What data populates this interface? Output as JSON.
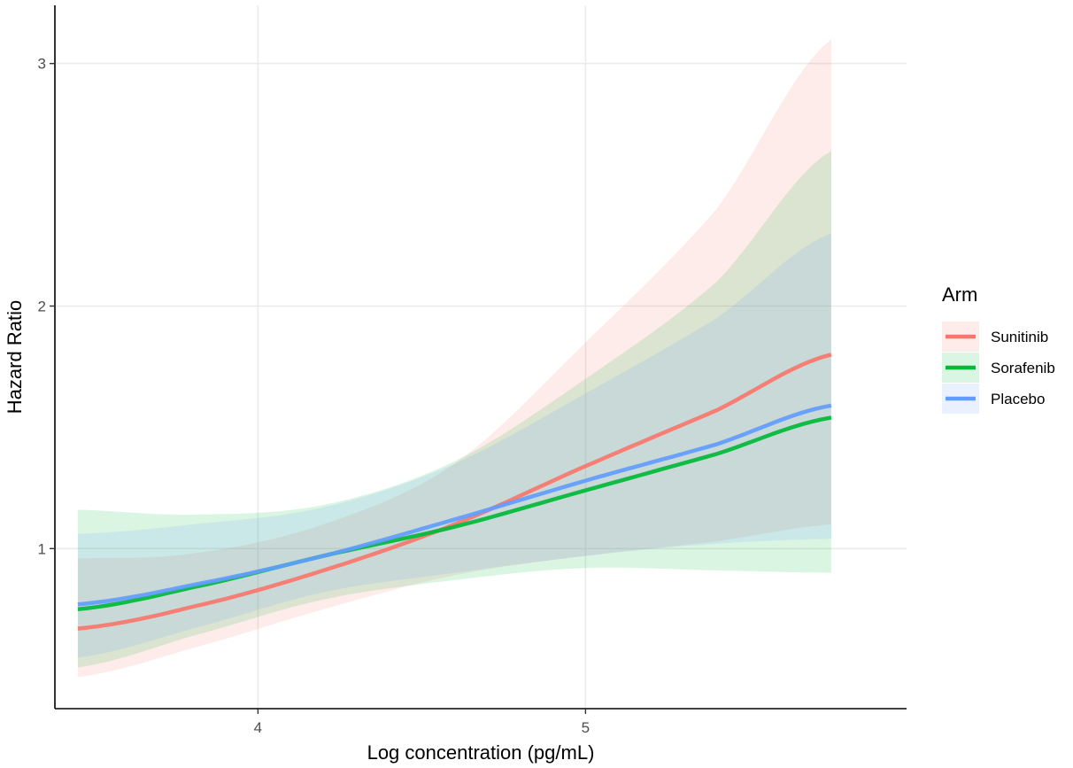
{
  "chart_data": {
    "type": "line",
    "xlabel": "Log concentration (pg/mL)",
    "ylabel": "Hazard Ratio",
    "xlim": [
      3.38,
      5.98
    ],
    "ylim": [
      0.34,
      3.24
    ],
    "x_ticks": [
      4,
      5
    ],
    "y_ticks": [
      1,
      2,
      3
    ],
    "x_tick_labels": [
      "4",
      "5"
    ],
    "y_tick_labels": [
      "1",
      "2",
      "3"
    ],
    "grid": true,
    "legend_position": "right",
    "legend": {
      "title": "Arm"
    },
    "x": [
      3.45,
      3.8,
      4.2,
      4.6,
      5.0,
      5.4,
      5.75
    ],
    "series": [
      {
        "name": "Sunitinib",
        "color": "#F8766D",
        "values": [
          0.67,
          0.76,
          0.91,
          1.1,
          1.34,
          1.57,
          1.8
        ],
        "lower": [
          0.47,
          0.59,
          0.75,
          0.89,
          0.97,
          1.03,
          1.1
        ],
        "upper": [
          0.96,
          0.98,
          1.1,
          1.35,
          1.85,
          2.4,
          3.1
        ]
      },
      {
        "name": "Sorafenib",
        "color": "#00BA38",
        "values": [
          0.75,
          0.84,
          0.97,
          1.09,
          1.24,
          1.39,
          1.54
        ],
        "lower": [
          0.51,
          0.64,
          0.79,
          0.87,
          0.92,
          0.91,
          0.9
        ],
        "upper": [
          1.16,
          1.14,
          1.18,
          1.36,
          1.7,
          2.1,
          2.64
        ]
      },
      {
        "name": "Placebo",
        "color": "#619CFF",
        "values": [
          0.77,
          0.85,
          0.97,
          1.12,
          1.28,
          1.43,
          1.59
        ],
        "lower": [
          0.55,
          0.67,
          0.82,
          0.9,
          0.97,
          1.02,
          1.04
        ],
        "upper": [
          1.06,
          1.1,
          1.17,
          1.35,
          1.64,
          1.95,
          2.3
        ]
      }
    ]
  }
}
